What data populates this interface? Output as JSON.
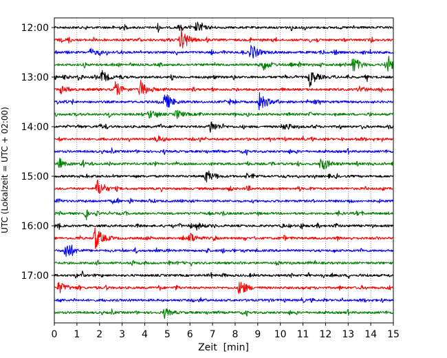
{
  "chart_data": {
    "type": "line",
    "title": "",
    "xlabel": "Zeit  [min]",
    "ylabel": "UTC (Lokalzeit = UTC + 02:00)",
    "xlim": [
      0,
      15
    ],
    "x_ticks": [
      "0",
      "1",
      "2",
      "3",
      "4",
      "5",
      "6",
      "7",
      "8",
      "9",
      "10",
      "11",
      "12",
      "13",
      "14",
      "15"
    ],
    "y_ticks": [
      "12:00",
      "13:00",
      "14:00",
      "15:00",
      "16:00",
      "17:00"
    ],
    "grid": "vertical dotted",
    "trace_colors": [
      "#000000",
      "#ff0000",
      "#0000ff",
      "#008000"
    ],
    "traces": [
      {
        "start": "12:00",
        "events": [
          [
            6.3,
            0.4
          ]
        ]
      },
      {
        "start": "12:15",
        "events": [
          [
            5.6,
            1.0
          ]
        ]
      },
      {
        "start": "12:30",
        "events": [
          [
            8.7,
            0.8
          ],
          [
            1.6,
            0.3
          ]
        ]
      },
      {
        "start": "12:45",
        "events": [
          [
            9.2,
            0.55
          ],
          [
            13.2,
            0.7
          ],
          [
            14.8,
            0.8
          ]
        ]
      },
      {
        "start": "13:00",
        "events": [
          [
            2.1,
            0.55
          ],
          [
            11.3,
            0.8
          ]
        ]
      },
      {
        "start": "13:15",
        "events": [
          [
            0.3,
            0.35
          ],
          [
            2.7,
            0.7
          ],
          [
            3.8,
            0.85
          ],
          [
            13.5,
            0.3
          ]
        ]
      },
      {
        "start": "13:30",
        "events": [
          [
            4.9,
            0.9
          ],
          [
            9.1,
            0.8
          ]
        ]
      },
      {
        "start": "13:45",
        "events": [
          [
            4.2,
            0.4
          ],
          [
            5.4,
            0.4
          ]
        ]
      },
      {
        "start": "14:00",
        "events": [
          [
            6.9,
            0.6
          ],
          [
            10.1,
            0.3
          ]
        ]
      },
      {
        "start": "14:15",
        "events": [
          [
            4.5,
            0.35
          ]
        ]
      },
      {
        "start": "14:30",
        "events": []
      },
      {
        "start": "14:45",
        "events": [
          [
            0.2,
            0.3
          ],
          [
            11.8,
            0.8
          ]
        ]
      },
      {
        "start": "15:00",
        "events": [
          [
            6.7,
            0.55
          ]
        ]
      },
      {
        "start": "15:15",
        "events": [
          [
            1.9,
            0.8
          ]
        ]
      },
      {
        "start": "15:30",
        "events": []
      },
      {
        "start": "15:45",
        "events": []
      },
      {
        "start": "16:00",
        "events": [
          [
            6.3,
            0.3
          ]
        ]
      },
      {
        "start": "16:15",
        "events": [
          [
            1.8,
            1.1
          ],
          [
            6.0,
            0.45
          ]
        ]
      },
      {
        "start": "16:30",
        "events": [
          [
            0.5,
            0.85
          ]
        ]
      },
      {
        "start": "16:45",
        "events": []
      },
      {
        "start": "17:00",
        "events": []
      },
      {
        "start": "17:15",
        "events": [
          [
            0.2,
            0.55
          ],
          [
            8.2,
            0.75
          ]
        ]
      },
      {
        "start": "17:30",
        "events": []
      },
      {
        "start": "17:45",
        "events": [
          [
            4.9,
            0.35
          ]
        ]
      }
    ]
  }
}
